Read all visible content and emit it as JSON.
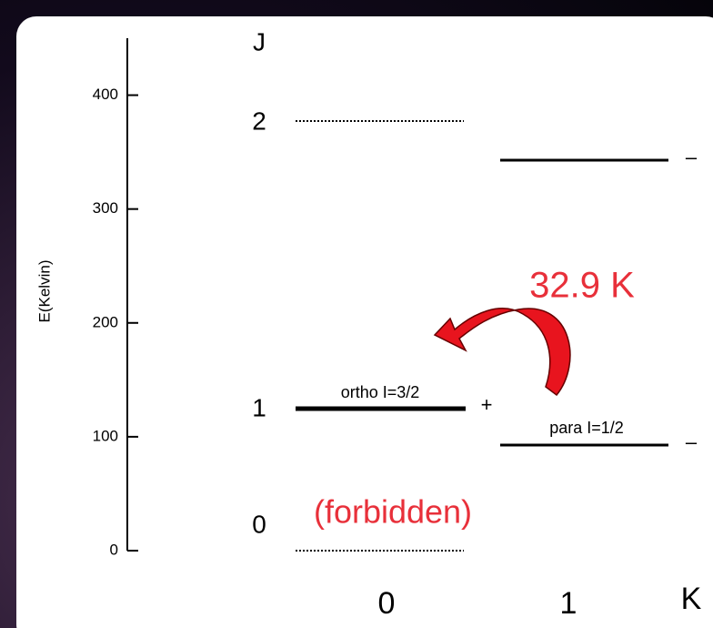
{
  "axis": {
    "label": "E(Kelvin)",
    "ylim": [
      0,
      450
    ],
    "yticks": [
      0,
      100,
      200,
      300,
      400
    ]
  },
  "j_label": "J",
  "k_label": "K",
  "j_values": [
    "2",
    "1",
    "0"
  ],
  "k_values": [
    "0",
    "1"
  ],
  "levels": {
    "ortho": "ortho I=3/2",
    "ortho_parity": "+",
    "para": "para I=1/2",
    "para_parity": "–",
    "upper_parity": "–"
  },
  "forbidden": "(forbidden)",
  "transition": "32.9 K"
}
